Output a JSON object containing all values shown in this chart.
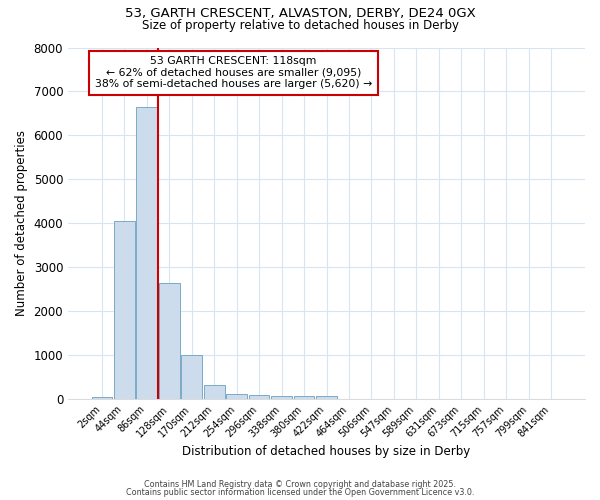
{
  "title1": "53, GARTH CRESCENT, ALVASTON, DERBY, DE24 0GX",
  "title2": "Size of property relative to detached houses in Derby",
  "xlabel": "Distribution of detached houses by size in Derby",
  "ylabel": "Number of detached properties",
  "bar_labels": [
    "2sqm",
    "44sqm",
    "86sqm",
    "128sqm",
    "170sqm",
    "212sqm",
    "254sqm",
    "296sqm",
    "338sqm",
    "380sqm",
    "422sqm",
    "464sqm",
    "506sqm",
    "547sqm",
    "589sqm",
    "631sqm",
    "673sqm",
    "715sqm",
    "757sqm",
    "799sqm",
    "841sqm"
  ],
  "bar_values": [
    55,
    4050,
    6650,
    2650,
    1000,
    330,
    120,
    100,
    75,
    70,
    60,
    0,
    0,
    0,
    0,
    0,
    0,
    0,
    0,
    0,
    0
  ],
  "bar_color": "#ccdcec",
  "bar_edgecolor": "#7aaac8",
  "red_line_x": 2.5,
  "annotation_title": "53 GARTH CRESCENT: 118sqm",
  "annotation_line1": "← 62% of detached houses are smaller (9,095)",
  "annotation_line2": "38% of semi-detached houses are larger (5,620) →",
  "annotation_color": "#cc0000",
  "ylim": [
    0,
    8000
  ],
  "yticks": [
    0,
    1000,
    2000,
    3000,
    4000,
    5000,
    6000,
    7000,
    8000
  ],
  "background_color": "#ffffff",
  "grid_color": "#d8e4f0",
  "footer1": "Contains HM Land Registry data © Crown copyright and database right 2025.",
  "footer2": "Contains public sector information licensed under the Open Government Licence v3.0."
}
